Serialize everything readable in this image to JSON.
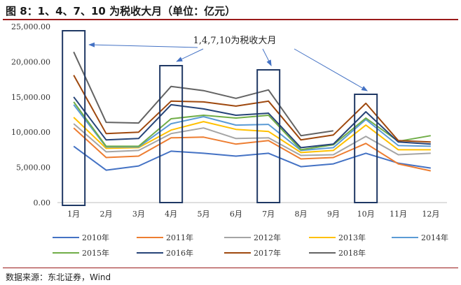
{
  "figure_title": "图 8：1、4、7、10 为税收大月（单位：亿元）",
  "source": "数据来源：东北证券，Wind",
  "chart_data": {
    "type": "line",
    "title": "",
    "xlabel": "",
    "ylabel": "",
    "ylim": [
      0,
      25000
    ],
    "y_ticks": [
      "0.00",
      "5,000.00",
      "10,000.00",
      "15,000.00",
      "20,000.00",
      "25,000.00"
    ],
    "y_tick_values": [
      0,
      5000,
      10000,
      15000,
      20000,
      25000
    ],
    "categories": [
      "1月",
      "2月",
      "3月",
      "4月",
      "5月",
      "6月",
      "7月",
      "8月",
      "9月",
      "10月",
      "11月",
      "12月"
    ],
    "grid": false,
    "legend_position": "bottom",
    "highlight_months": [
      "1月",
      "4月",
      "7月",
      "10月"
    ],
    "annotation": "1,4,7,10为税收大月",
    "series": [
      {
        "name": "2010年",
        "color": "#4472c4",
        "values": [
          8000,
          4600,
          5200,
          7300,
          7000,
          6600,
          7000,
          5100,
          5500,
          7000,
          5600,
          4900
        ]
      },
      {
        "name": "2011年",
        "color": "#ed7d31",
        "values": [
          10600,
          6400,
          6600,
          9200,
          9300,
          8300,
          8800,
          6200,
          6400,
          8400,
          5500,
          4500
        ]
      },
      {
        "name": "2012年",
        "color": "#a5a5a5",
        "values": [
          11200,
          7200,
          7400,
          9800,
          10600,
          9100,
          9200,
          6700,
          6800,
          9400,
          6800,
          7000
        ]
      },
      {
        "name": "2013年",
        "color": "#ffc000",
        "values": [
          12100,
          7700,
          7800,
          10300,
          11500,
          10400,
          10100,
          7100,
          7400,
          11000,
          7500,
          7500
        ]
      },
      {
        "name": "2014年",
        "color": "#5b9bd5",
        "values": [
          13900,
          7900,
          7900,
          11200,
          12200,
          11000,
          11100,
          7400,
          7800,
          11800,
          8100,
          8000
        ]
      },
      {
        "name": "2015年",
        "color": "#70ad47",
        "values": [
          14300,
          8000,
          8000,
          11900,
          12400,
          12000,
          12400,
          7500,
          8200,
          12000,
          8700,
          9500
        ]
      },
      {
        "name": "2016年",
        "color": "#264478",
        "values": [
          15000,
          8900,
          9100,
          13900,
          13300,
          12400,
          12700,
          7800,
          8300,
          12900,
          8600,
          8300
        ]
      },
      {
        "name": "2017年",
        "color": "#9e480e",
        "values": [
          18100,
          9800,
          10000,
          14400,
          14300,
          13700,
          14400,
          8900,
          9600,
          14100,
          8800,
          8600
        ]
      },
      {
        "name": "2018年",
        "color": "#636363",
        "values": [
          21400,
          11400,
          11300,
          16500,
          15900,
          14800,
          16000,
          9500,
          10200,
          null,
          null,
          null
        ]
      }
    ]
  }
}
